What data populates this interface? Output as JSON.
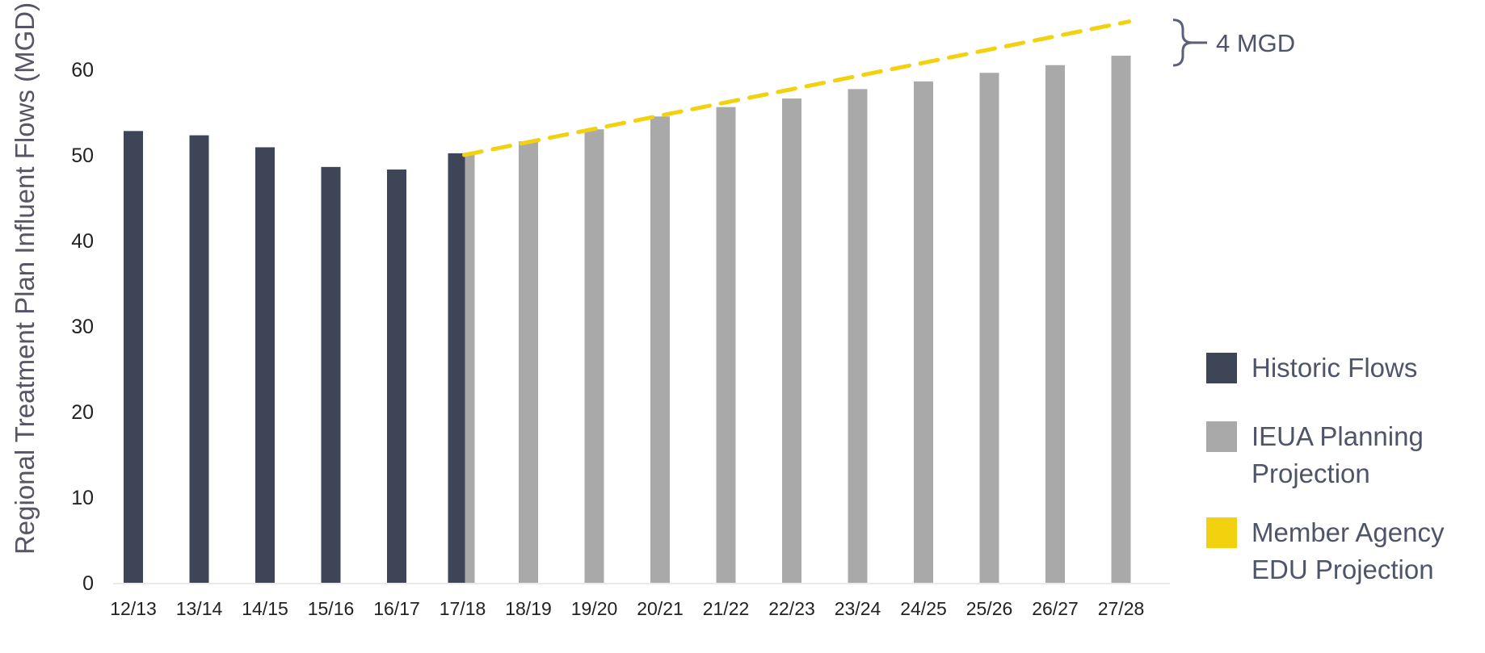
{
  "chart_data": {
    "type": "bar",
    "categories": [
      "12/13",
      "13/14",
      "14/15",
      "15/16",
      "16/17",
      "17/18",
      "18/19",
      "19/20",
      "20/21",
      "21/22",
      "22/23",
      "23/24",
      "24/25",
      "25/26",
      "26/27",
      "27/28"
    ],
    "series": [
      {
        "name": "Historic Flows",
        "color": "#3d4556",
        "values": [
          52.8,
          52.3,
          50.9,
          48.6,
          48.3,
          50.2,
          null,
          null,
          null,
          null,
          null,
          null,
          null,
          null,
          null,
          null
        ]
      },
      {
        "name": "IEUA Planning Projection",
        "color": "#a9a9a9",
        "values": [
          null,
          null,
          null,
          null,
          null,
          50.0,
          51.6,
          53.0,
          54.5,
          55.6,
          56.6,
          57.7,
          58.6,
          59.6,
          60.5,
          61.6
        ]
      },
      {
        "name": "Member Agency EDU Projection",
        "type": "line",
        "style": "dashed",
        "color": "#f2d10f",
        "points": [
          {
            "x": "17/18",
            "y": 50.0
          },
          {
            "x": "27/28",
            "y": 65.6
          }
        ]
      }
    ],
    "ylabel": "Regional Treatment Plan Influent Flows (MGD)",
    "xlabel": "",
    "ylim": [
      0,
      67
    ],
    "yticks": [
      0,
      10,
      20,
      30,
      40,
      50,
      60
    ],
    "grid": false,
    "legend_position": "right",
    "legend": [
      {
        "lines": [
          "Historic Flows"
        ],
        "color": "#3d4556"
      },
      {
        "lines": [
          "IEUA Planning",
          "Projection"
        ],
        "color": "#a9a9a9"
      },
      {
        "lines": [
          "Member Agency",
          "EDU Projection"
        ],
        "color": "#f2d10f"
      }
    ],
    "annotation": {
      "text": "4 MGD",
      "color": "#4e5568"
    }
  }
}
